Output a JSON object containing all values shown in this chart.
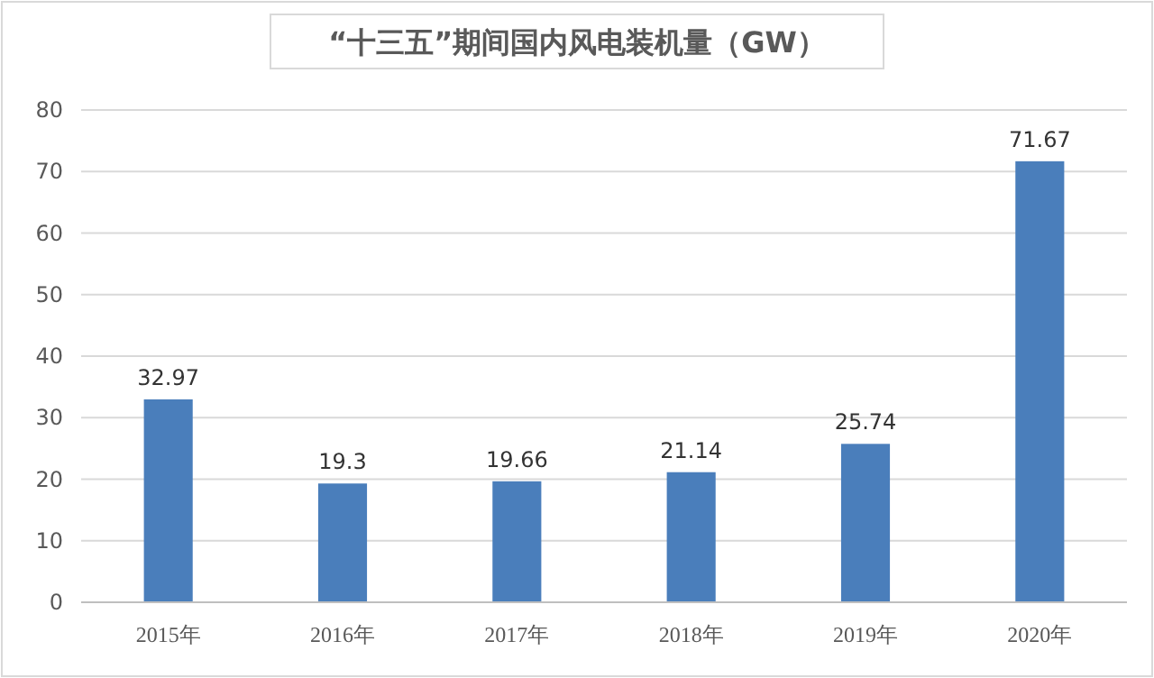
{
  "chart_data": {
    "type": "bar",
    "title": "“十三五”期间国内风电装机量（GW）",
    "categories": [
      "2015年",
      "2016年",
      "2017年",
      "2018年",
      "2019年",
      "2020年"
    ],
    "values": [
      32.97,
      19.3,
      19.66,
      21.14,
      25.74,
      71.67
    ],
    "color": "#4a7ebb",
    "ylim": [
      0,
      80
    ],
    "yticks": [
      0,
      10,
      20,
      30,
      40,
      50,
      60,
      70,
      80
    ],
    "grid": "y",
    "data_labels": true
  }
}
